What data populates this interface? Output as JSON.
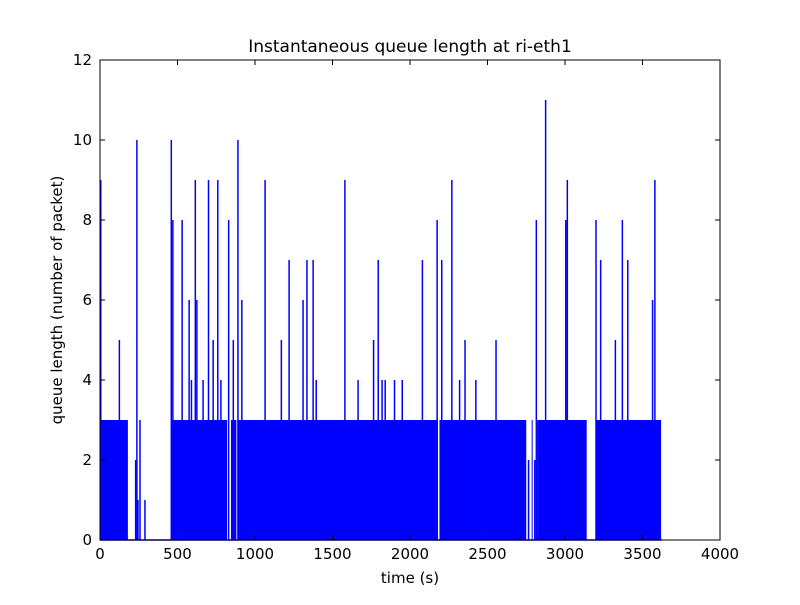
{
  "chart_data": {
    "type": "line",
    "title": "Instantaneous queue length at ri-eth1",
    "xlabel": "time (s)",
    "ylabel": "queue length (number of packet)",
    "xlim": [
      0,
      4000
    ],
    "ylim": [
      0,
      12
    ],
    "xticks": [
      0,
      500,
      1000,
      1500,
      2000,
      2500,
      3000,
      3500,
      4000
    ],
    "yticks": [
      0,
      2,
      4,
      6,
      8,
      10,
      12
    ],
    "grid": false,
    "legend": "none",
    "series": [
      {
        "color": "#0000ff",
        "baseline_segments": [
          {
            "x_start": 0,
            "x_end": 180,
            "value": 3
          },
          {
            "x_start": 460,
            "x_end": 820,
            "value": 3
          },
          {
            "x_start": 845,
            "x_end": 880,
            "value": 3
          },
          {
            "x_start": 890,
            "x_end": 2180,
            "value": 3
          },
          {
            "x_start": 2190,
            "x_end": 2750,
            "value": 3
          },
          {
            "x_start": 2785,
            "x_end": 2790,
            "value": 3
          },
          {
            "x_start": 2820,
            "x_end": 3140,
            "value": 3
          },
          {
            "x_start": 3200,
            "x_end": 3620,
            "value": 3
          }
        ],
        "spikes": [
          {
            "x": 5,
            "y": 9
          },
          {
            "x": 125,
            "y": 5
          },
          {
            "x": 170,
            "y": 1
          },
          {
            "x": 230,
            "y": 2
          },
          {
            "x": 238,
            "y": 10
          },
          {
            "x": 245,
            "y": 1
          },
          {
            "x": 258,
            "y": 3
          },
          {
            "x": 290,
            "y": 1
          },
          {
            "x": 460,
            "y": 10
          },
          {
            "x": 470,
            "y": 8
          },
          {
            "x": 530,
            "y": 8
          },
          {
            "x": 575,
            "y": 6
          },
          {
            "x": 590,
            "y": 4
          },
          {
            "x": 615,
            "y": 9
          },
          {
            "x": 625,
            "y": 6
          },
          {
            "x": 665,
            "y": 4
          },
          {
            "x": 700,
            "y": 9
          },
          {
            "x": 730,
            "y": 5
          },
          {
            "x": 760,
            "y": 9
          },
          {
            "x": 780,
            "y": 4
          },
          {
            "x": 830,
            "y": 8
          },
          {
            "x": 860,
            "y": 5
          },
          {
            "x": 890,
            "y": 10
          },
          {
            "x": 915,
            "y": 6
          },
          {
            "x": 1065,
            "y": 9
          },
          {
            "x": 1170,
            "y": 5
          },
          {
            "x": 1220,
            "y": 7
          },
          {
            "x": 1310,
            "y": 6
          },
          {
            "x": 1335,
            "y": 7
          },
          {
            "x": 1375,
            "y": 7
          },
          {
            "x": 1395,
            "y": 4
          },
          {
            "x": 1580,
            "y": 9
          },
          {
            "x": 1665,
            "y": 4
          },
          {
            "x": 1765,
            "y": 5
          },
          {
            "x": 1795,
            "y": 7
          },
          {
            "x": 1820,
            "y": 4
          },
          {
            "x": 1840,
            "y": 4
          },
          {
            "x": 1900,
            "y": 4
          },
          {
            "x": 1950,
            "y": 4
          },
          {
            "x": 2080,
            "y": 7
          },
          {
            "x": 2175,
            "y": 8
          },
          {
            "x": 2205,
            "y": 7
          },
          {
            "x": 2270,
            "y": 9
          },
          {
            "x": 2320,
            "y": 4
          },
          {
            "x": 2355,
            "y": 5
          },
          {
            "x": 2425,
            "y": 4
          },
          {
            "x": 2555,
            "y": 5
          },
          {
            "x": 2765,
            "y": 2
          },
          {
            "x": 2805,
            "y": 2
          },
          {
            "x": 2815,
            "y": 8
          },
          {
            "x": 2875,
            "y": 11
          },
          {
            "x": 3005,
            "y": 8
          },
          {
            "x": 3015,
            "y": 9
          },
          {
            "x": 3200,
            "y": 8
          },
          {
            "x": 3230,
            "y": 7
          },
          {
            "x": 3325,
            "y": 5
          },
          {
            "x": 3370,
            "y": 8
          },
          {
            "x": 3405,
            "y": 7
          },
          {
            "x": 3565,
            "y": 6
          },
          {
            "x": 3580,
            "y": 9
          }
        ]
      }
    ]
  }
}
